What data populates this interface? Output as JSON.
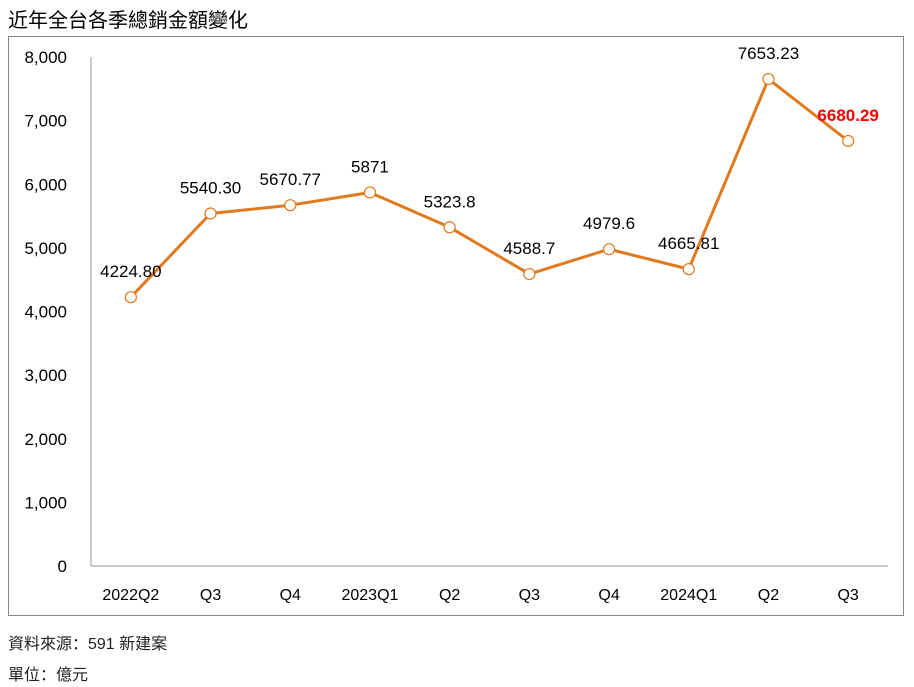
{
  "chart_data": {
    "type": "line",
    "title": "近年全台各季總銷金額變化",
    "categories": [
      "2022Q2",
      "Q3",
      "Q4",
      "2023Q1",
      "Q2",
      "Q3",
      "Q4",
      "2024Q1",
      "Q2",
      "Q3"
    ],
    "series": [
      {
        "values": [
          4224.8,
          5540.3,
          5670.77,
          5871,
          5323.8,
          4588.7,
          4979.6,
          4665.81,
          7653.23,
          6680.29
        ],
        "data_labels": [
          "4224.80",
          "5540.30",
          "5670.77",
          "5871",
          "5323.8",
          "4588.7",
          "4979.6",
          "4665.81",
          "7653.23",
          "6680.29"
        ],
        "color": "#E07A1F",
        "marker": "open-circle"
      }
    ],
    "highlight_label": {
      "index": 9,
      "color": "#FF0000",
      "bold": true
    },
    "ylim": [
      0,
      8000
    ],
    "yticks": [
      0,
      1000,
      2000,
      3000,
      4000,
      5000,
      6000,
      7000,
      8000
    ],
    "ytick_labels": [
      "0",
      "1,000",
      "2,000",
      "3,000",
      "4,000",
      "5,000",
      "6,000",
      "7,000",
      "8,000"
    ],
    "grid": false,
    "xlabel": "",
    "ylabel": ""
  },
  "footer": {
    "source": "資料來源：591 新建案",
    "unit": "單位：億元"
  }
}
